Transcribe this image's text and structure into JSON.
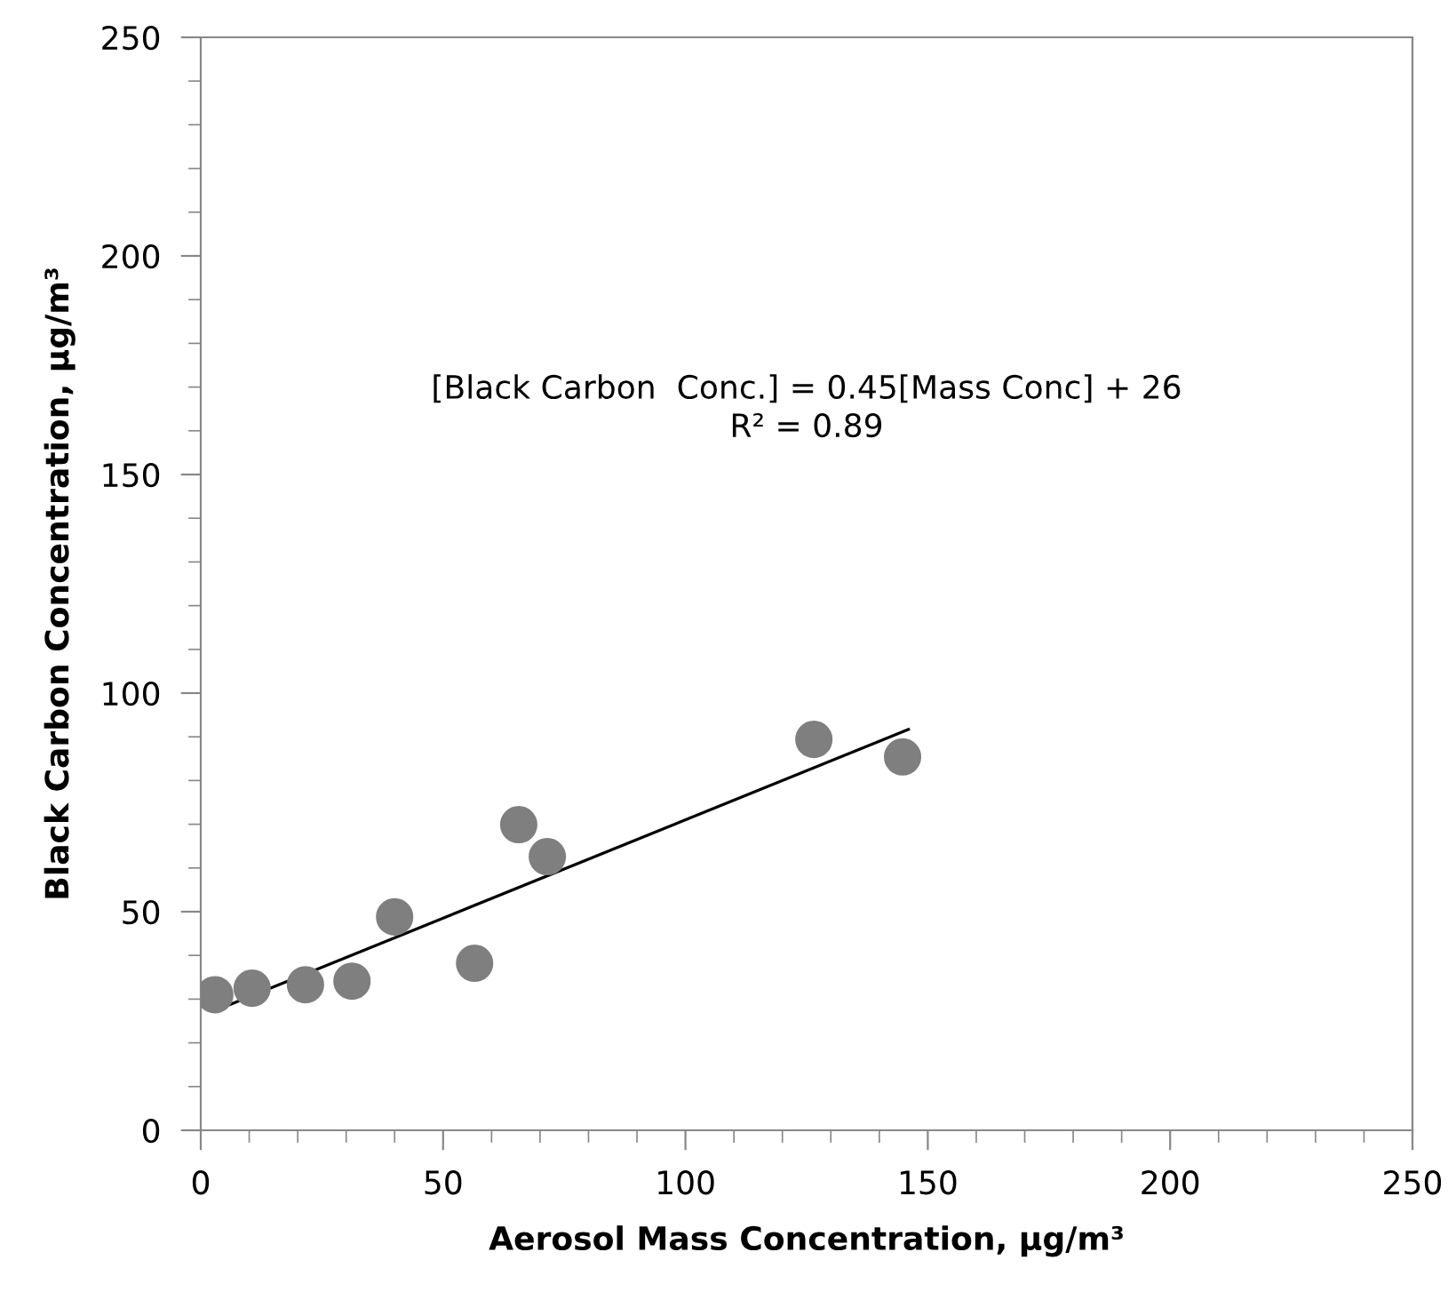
{
  "chart_data": {
    "type": "scatter",
    "xlabel": "Aerosol Mass Concentration, µg/m³",
    "ylabel": "Black Carbon Concentration, µg/m³",
    "annotations": [
      "[Black Carbon  Conc.] = 0.45[Mass Conc] + 26\nR² = 0.89"
    ],
    "series": [
      {
        "marker": "circle",
        "color": "#7f7f7f",
        "x": [
          2.9,
          10.6,
          21.6,
          31.2,
          40,
          56.5,
          65.6,
          71.5,
          126.5,
          144.8
        ],
        "values": [
          31,
          32.5,
          33.3,
          34.1,
          48.8,
          38.2,
          69.9,
          62.6,
          89.4,
          85.4
        ]
      },
      {
        "type": "line",
        "marker": "none",
        "color": "#000000",
        "x": [
          3,
          146
        ],
        "values": [
          27.4,
          91.7
        ]
      }
    ],
    "xlim": [
      0,
      250
    ],
    "ylim": [
      0,
      250
    ],
    "xticks": [
      0,
      50,
      100,
      150,
      200,
      250
    ],
    "yticks": [
      0,
      50,
      100,
      150,
      200,
      250
    ],
    "grid": false,
    "legend": false
  }
}
